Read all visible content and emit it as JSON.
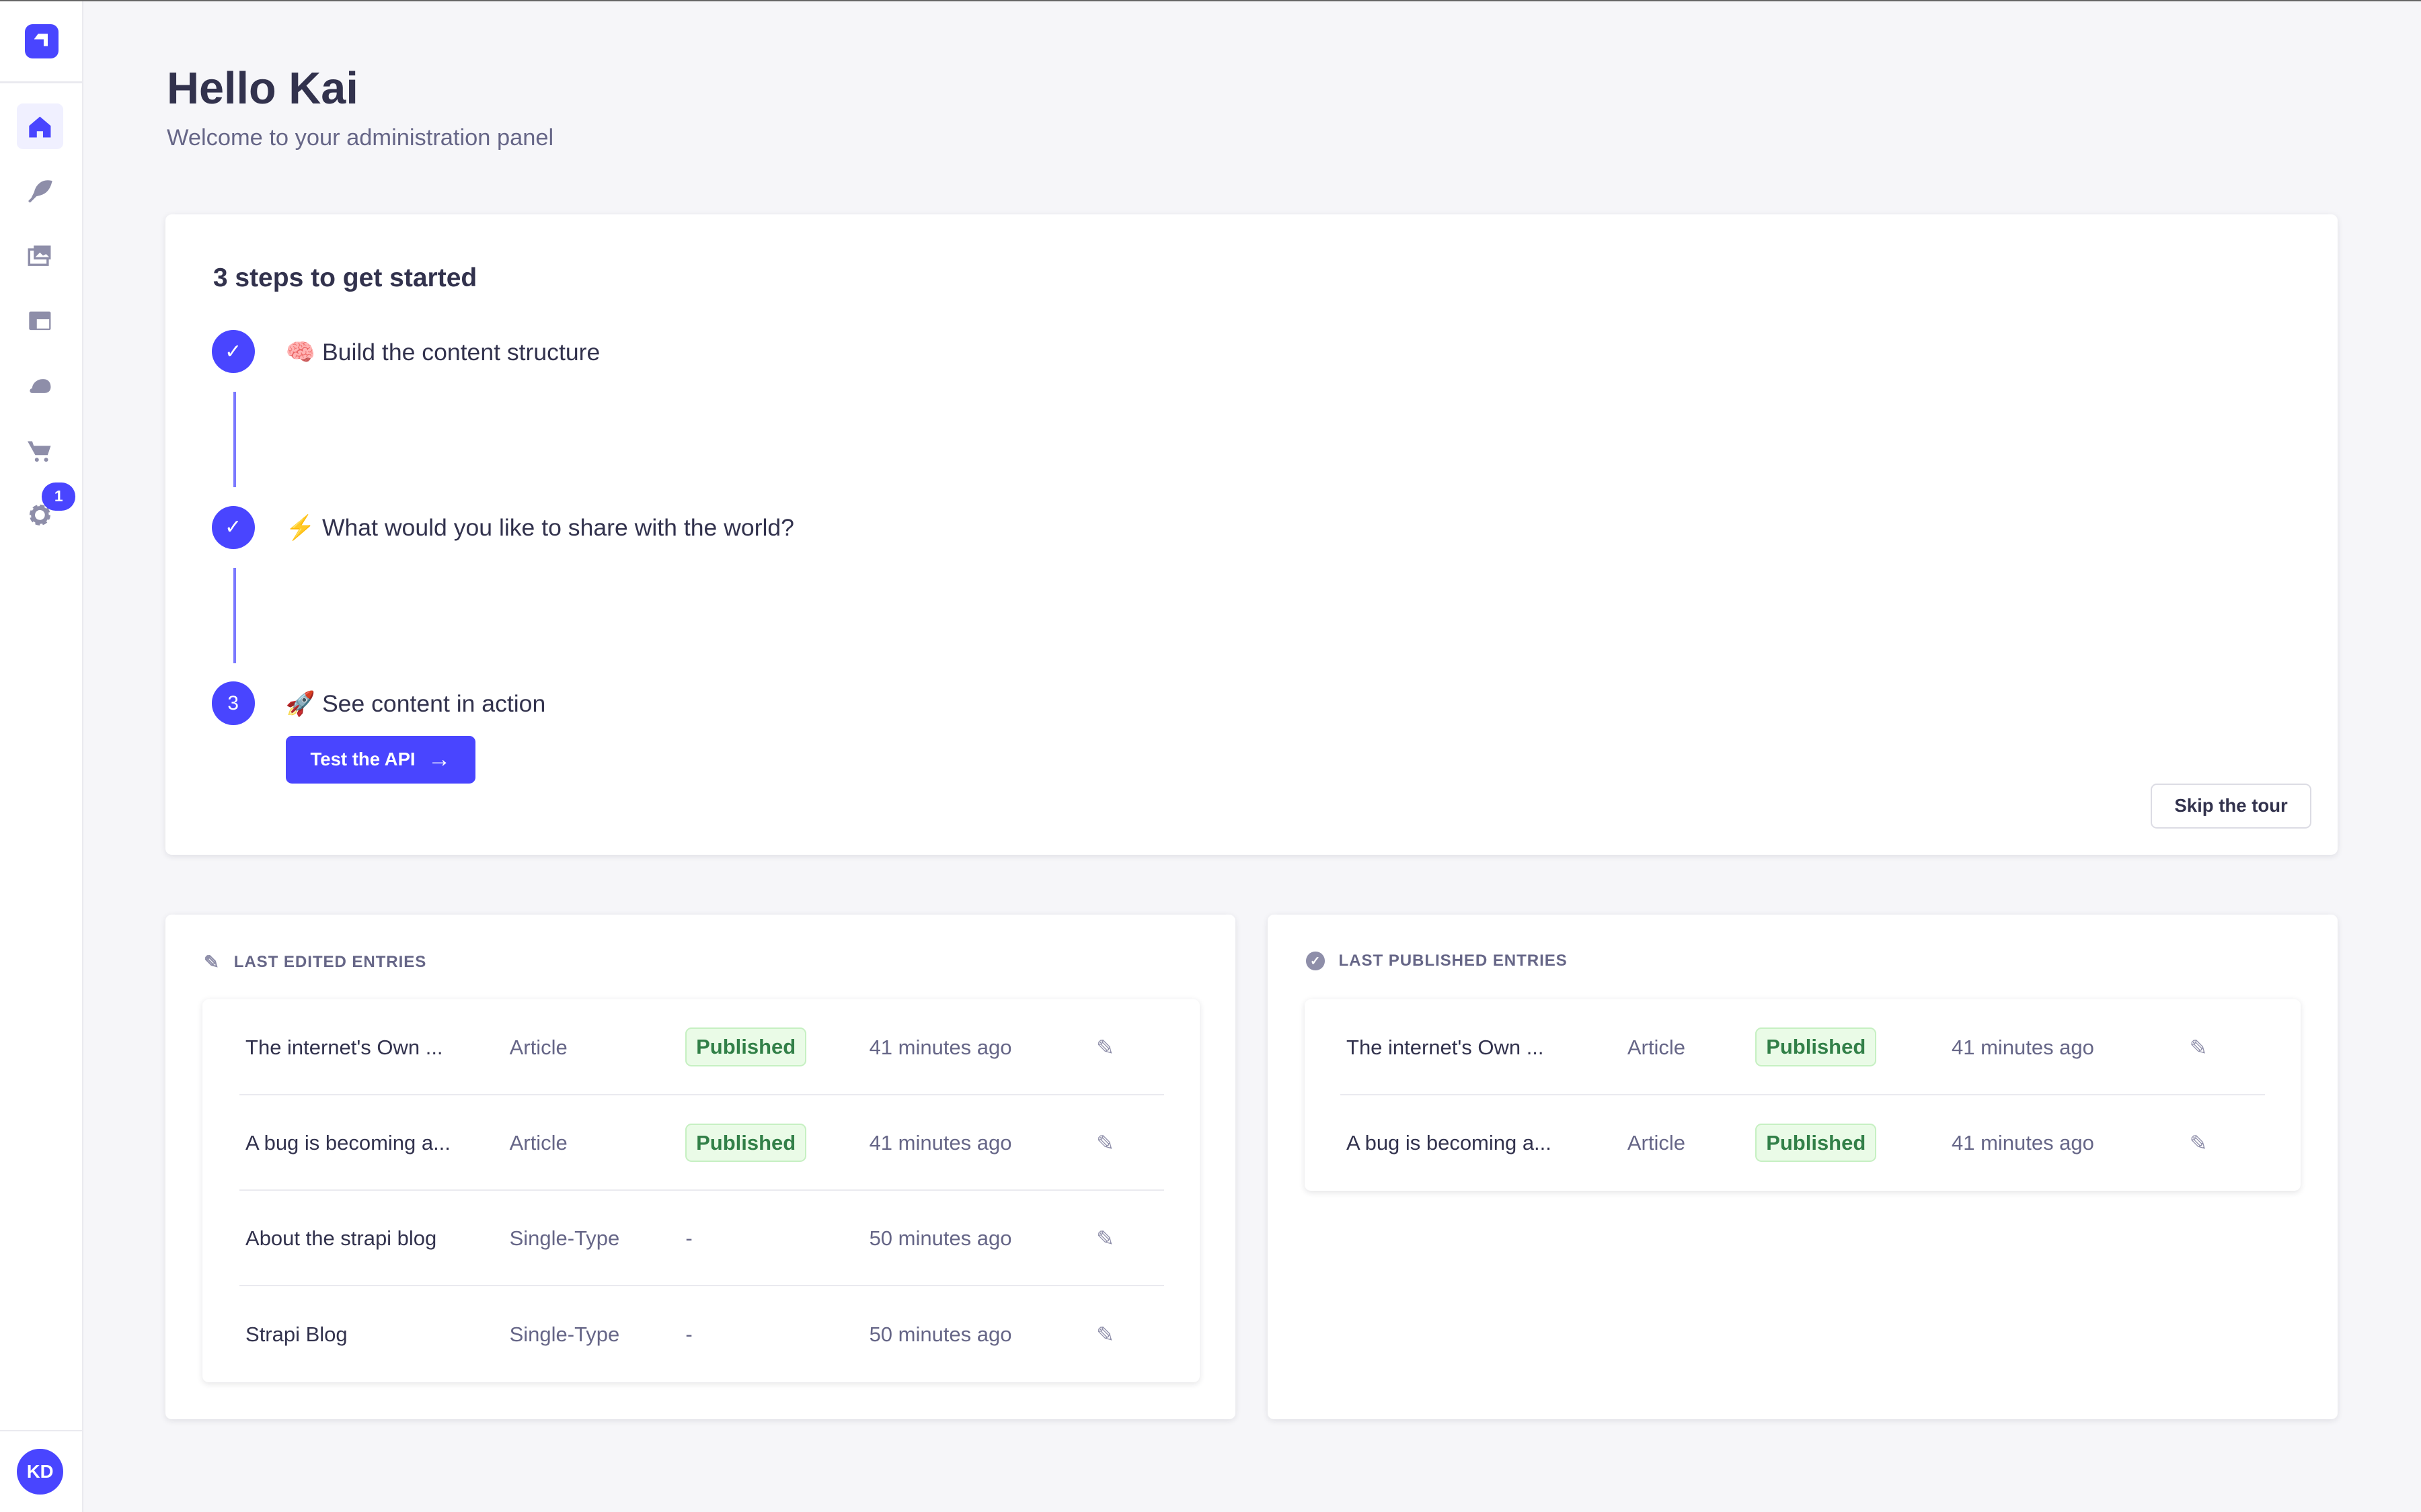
{
  "sidebar": {
    "items": [
      {
        "icon": "home-icon",
        "active": true
      },
      {
        "icon": "feather-icon"
      },
      {
        "icon": "media-library-icon"
      },
      {
        "icon": "layout-icon"
      },
      {
        "icon": "cloud-icon"
      },
      {
        "icon": "cart-icon"
      },
      {
        "icon": "gear-icon",
        "badge": "1"
      }
    ],
    "avatar": "KD"
  },
  "header": {
    "title": "Hello Kai",
    "subtitle": "Welcome to your administration panel"
  },
  "steps": {
    "title": "3 steps to get started",
    "items": [
      {
        "emoji": "🧠",
        "label": "Build the content structure",
        "done": true
      },
      {
        "emoji": "⚡",
        "label": "What would you like to share with the world?",
        "done": true
      },
      {
        "emoji": "🚀",
        "label": "See content in action",
        "number": "3"
      }
    ],
    "cta": "Test the API",
    "skip": "Skip the tour"
  },
  "colors": {
    "primary": "#4945ff",
    "published_bg": "#eafbe7",
    "published_text": "#328048"
  },
  "last_edited": {
    "title": "LAST EDITED ENTRIES",
    "rows": [
      {
        "name": "The internet's Own ...",
        "type": "Article",
        "status": "Published",
        "time": "41 minutes ago"
      },
      {
        "name": "A bug is becoming a...",
        "type": "Article",
        "status": "Published",
        "time": "41 minutes ago"
      },
      {
        "name": "About the strapi blog",
        "type": "Single-Type",
        "status": "-",
        "time": "50 minutes ago"
      },
      {
        "name": "Strapi Blog",
        "type": "Single-Type",
        "status": "-",
        "time": "50 minutes ago"
      }
    ]
  },
  "last_published": {
    "title": "LAST PUBLISHED ENTRIES",
    "rows": [
      {
        "name": "The internet's Own ...",
        "type": "Article",
        "status": "Published",
        "time": "41 minutes ago"
      },
      {
        "name": "A bug is becoming a...",
        "type": "Article",
        "status": "Published",
        "time": "41 minutes ago"
      }
    ]
  }
}
